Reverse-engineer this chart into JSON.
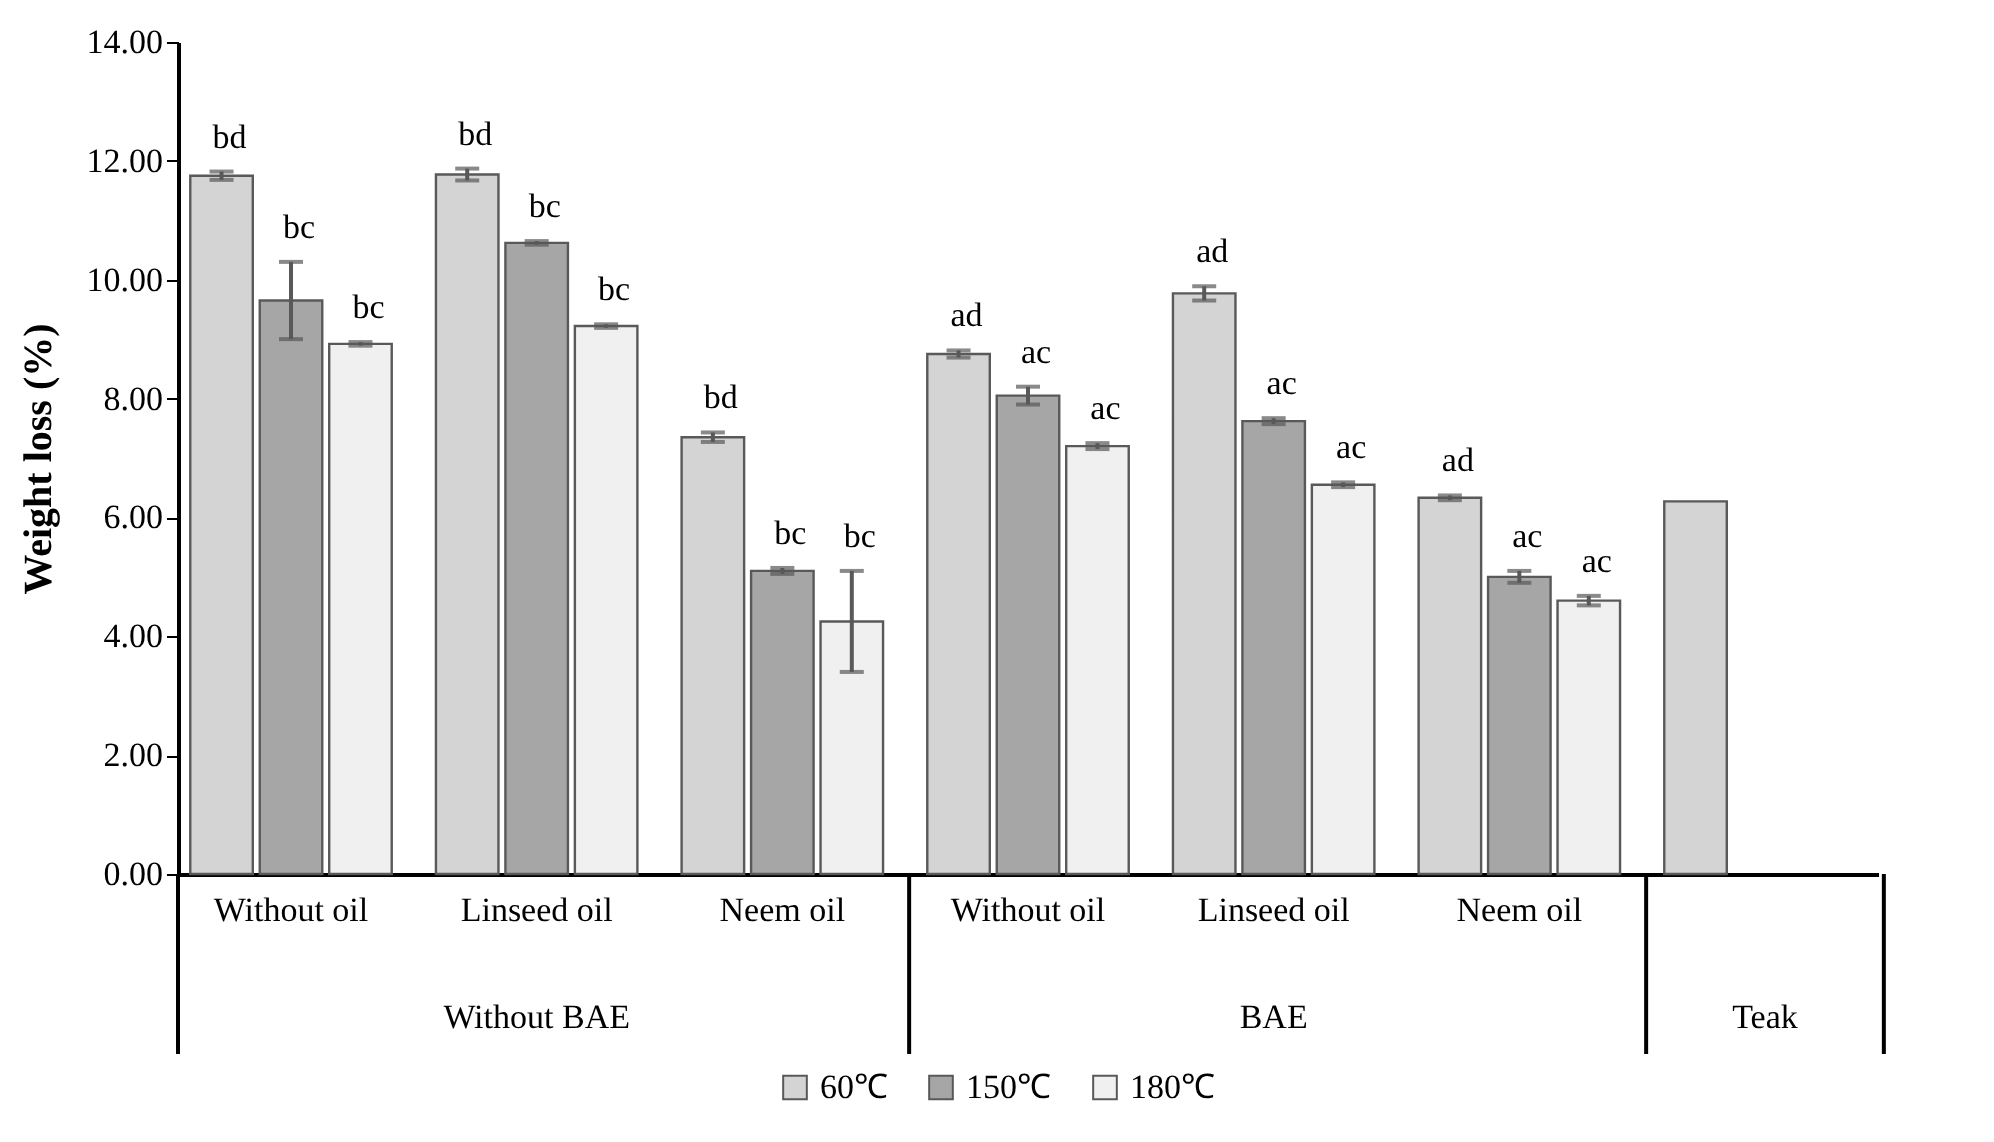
{
  "chart_data": {
    "type": "bar",
    "ylabel": "Weight loss (%)",
    "categories": [
      "Without oil",
      "Linseed oil",
      "Neem oil",
      "Without oil",
      "Linseed oil",
      "Neem oil",
      null
    ],
    "annotations": [
      "Without BAE",
      "BAE",
      "Teak"
    ],
    "series": [
      {
        "name": "60℃",
        "color": "#d4d4d4",
        "values": [
          11.75,
          11.77,
          7.35,
          8.75,
          9.77,
          6.33,
          6.27
        ],
        "errors": [
          0.07,
          0.1,
          0.08,
          0.06,
          0.12,
          0.04,
          null
        ],
        "value_labels": [
          "bd",
          "bd",
          "bd",
          "ad",
          "ad",
          "ad",
          null
        ]
      },
      {
        "name": "150℃",
        "color": "#a6a6a6",
        "values": [
          9.65,
          10.62,
          5.1,
          8.05,
          7.62,
          5.0,
          null
        ],
        "errors": [
          0.65,
          0.03,
          0.05,
          0.15,
          0.05,
          0.1,
          null
        ],
        "value_labels": [
          "bc",
          "bc",
          "bc",
          "ac",
          "ac",
          "ac",
          null
        ]
      },
      {
        "name": "180℃",
        "color": "#f0f0f0",
        "values": [
          8.92,
          9.22,
          4.25,
          7.2,
          6.55,
          4.6,
          null
        ],
        "errors": [
          0.03,
          0.03,
          0.85,
          0.05,
          0.04,
          0.08,
          null
        ],
        "value_labels": [
          "bc",
          "bc",
          "bc",
          "ac",
          "ac",
          "ac",
          null
        ]
      }
    ],
    "ylim": [
      0,
      14
    ],
    "yticks": [
      {
        "value": 0,
        "label": "0.00"
      },
      {
        "value": 2,
        "label": "2.00"
      },
      {
        "value": 4,
        "label": "4.00"
      },
      {
        "value": 6,
        "label": "6.00"
      },
      {
        "value": 8,
        "label": "8.00"
      },
      {
        "value": 10,
        "label": "10.00"
      },
      {
        "value": 12,
        "label": "12.00"
      },
      {
        "value": 14,
        "label": "14.00"
      }
    ],
    "grid": false,
    "legend": "bottom"
  }
}
